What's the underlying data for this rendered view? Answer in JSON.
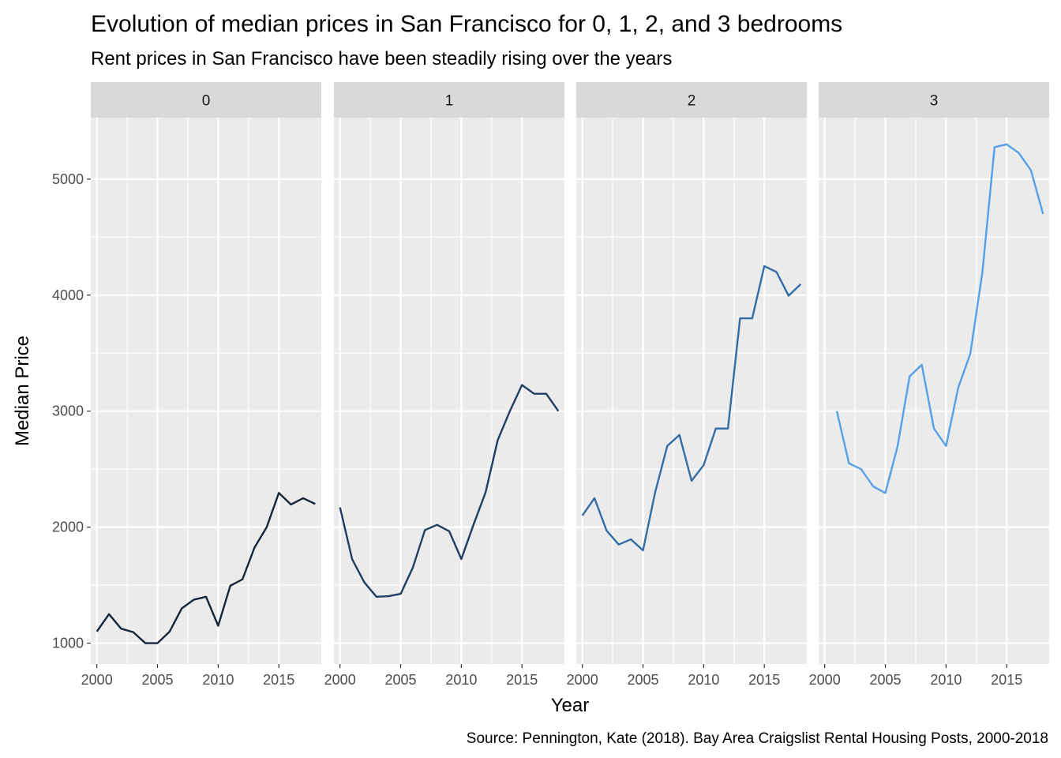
{
  "chart_data": {
    "type": "line",
    "title": "Evolution of median prices in San Francisco for 0, 1, 2, and 3 bedrooms",
    "subtitle": "Rent prices in San Francisco have been steadily rising over the years",
    "xlabel": "Year",
    "ylabel": "Median Price",
    "caption": "Source: Pennington, Kate (2018). Bay Area Craigslist Rental Housing Posts, 2000-2018",
    "xlim": [
      1999.5,
      2018.5
    ],
    "ylim": [
      820,
      5530
    ],
    "x_ticks": [
      2000,
      2005,
      2010,
      2015
    ],
    "y_ticks": [
      1000,
      2000,
      3000,
      4000,
      5000
    ],
    "grid": true,
    "facet_by": "beds",
    "panels": [
      {
        "label": "0",
        "color": "#14263a",
        "x": [
          2000,
          2001,
          2002,
          2003,
          2004,
          2005,
          2006,
          2007,
          2008,
          2009,
          2010,
          2011,
          2012,
          2013,
          2014,
          2015,
          2016,
          2017,
          2018
        ],
        "values": [
          1100,
          1250,
          1125,
          1095,
          1000,
          1000,
          1100,
          1300,
          1375,
          1400,
          1150,
          1495,
          1550,
          1825,
          2000,
          2295,
          2195,
          2250,
          2200
        ]
      },
      {
        "label": "1",
        "color": "#1f3e63",
        "x": [
          2000,
          2001,
          2002,
          2003,
          2004,
          2005,
          2006,
          2007,
          2008,
          2009,
          2010,
          2011,
          2012,
          2013,
          2014,
          2015,
          2016,
          2017,
          2018
        ],
        "values": [
          2170,
          1725,
          1525,
          1400,
          1405,
          1425,
          1650,
          1975,
          2020,
          1965,
          1725,
          2020,
          2300,
          2750,
          3000,
          3225,
          3150,
          3150,
          3000
        ]
      },
      {
        "label": "2",
        "color": "#336da6",
        "x": [
          2000,
          2001,
          2002,
          2003,
          2004,
          2005,
          2006,
          2007,
          2008,
          2009,
          2010,
          2011,
          2012,
          2013,
          2014,
          2015,
          2016,
          2017,
          2018
        ],
        "values": [
          2100,
          2250,
          1970,
          1850,
          1895,
          1800,
          2300,
          2700,
          2795,
          2400,
          2535,
          2850,
          2850,
          3800,
          3800,
          4250,
          4200,
          3995,
          4095
        ]
      },
      {
        "label": "3",
        "color": "#56a0e8",
        "x": [
          2001,
          2002,
          2003,
          2004,
          2005,
          2006,
          2007,
          2008,
          2009,
          2010,
          2011,
          2012,
          2013,
          2014,
          2015,
          2016,
          2017,
          2018
        ],
        "values": [
          3000,
          2550,
          2500,
          2350,
          2295,
          2695,
          3300,
          3400,
          2850,
          2700,
          3200,
          3495,
          4200,
          5275,
          5300,
          5225,
          5075,
          4700
        ]
      }
    ]
  }
}
